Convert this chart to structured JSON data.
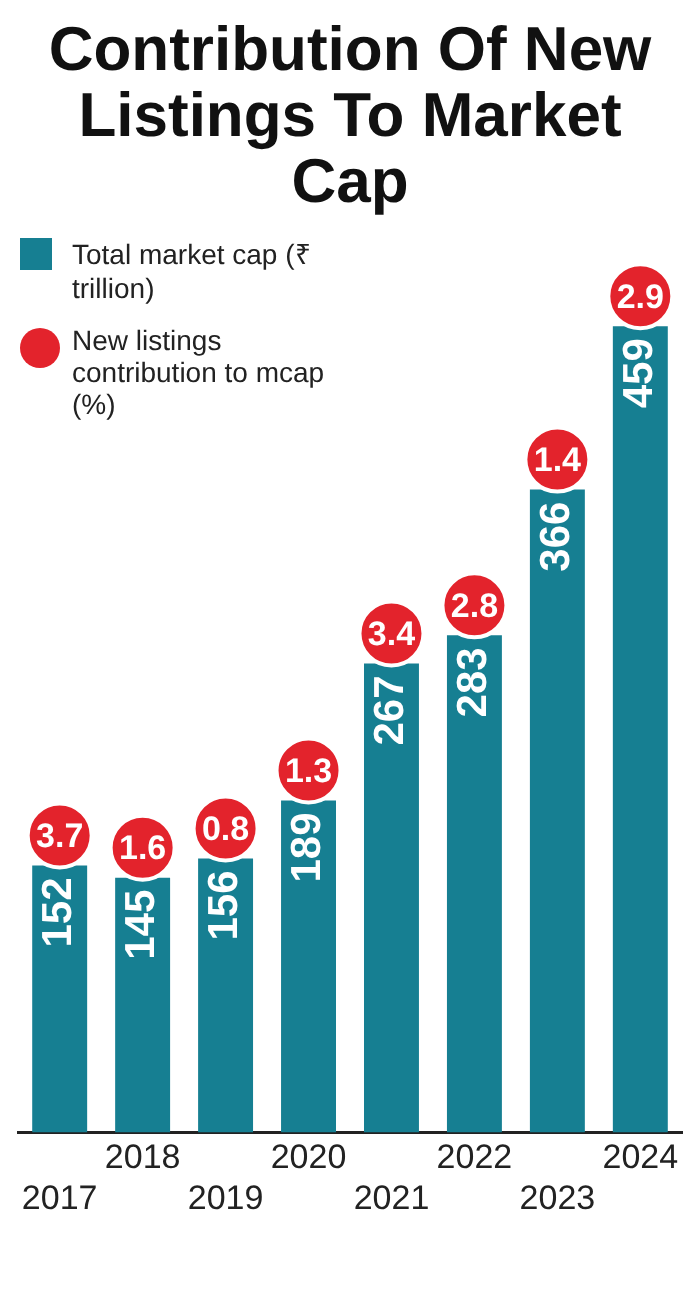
{
  "chart_data": {
    "type": "bar",
    "title": "Contribution Of New Listings To Market Cap",
    "categories": [
      "2017",
      "2018",
      "2019",
      "2020",
      "2021",
      "2022",
      "2023",
      "2024"
    ],
    "series": [
      {
        "name": "Total market cap (₹ trillion)",
        "color": "#167f92",
        "values": [
          152,
          145,
          156,
          189,
          267,
          283,
          366,
          459
        ]
      }
    ],
    "data_labels": true,
    "annotations": [
      "New listings contribution to mcap (%)",
      {
        "text": "3.7",
        "x": "2017",
        "y": 152
      },
      {
        "text": "1.6",
        "x": "2018",
        "y": 145
      },
      {
        "text": "0.8",
        "x": "2019",
        "y": 156
      },
      {
        "text": "1.3",
        "x": "2020",
        "y": 189
      },
      {
        "text": "3.4",
        "x": "2021",
        "y": 267
      },
      {
        "text": "2.8",
        "x": "2022",
        "y": 283
      },
      {
        "text": "1.4",
        "x": "2023",
        "y": 366
      },
      {
        "text": "2.9",
        "x": "2024",
        "y": 459
      }
    ],
    "legend": "top left",
    "grid": false
  }
}
